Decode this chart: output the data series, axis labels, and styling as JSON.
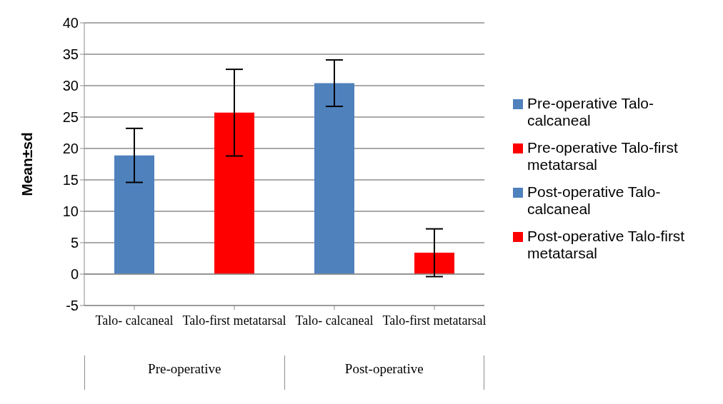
{
  "chart_data": {
    "type": "bar",
    "ylabel": "Mean±sd",
    "categories": [
      "Talo- calcaneal",
      "Talo-first metatarsal",
      "Talo- calcaneal",
      "Talo-first metatarsal"
    ],
    "series": [
      {
        "name": "Pre-operative Talo-calcaneal",
        "color": "#4f81bd",
        "values": [
          18.9,
          null,
          null,
          null
        ],
        "errors": [
          4.3,
          null,
          null,
          null
        ]
      },
      {
        "name": "Pre-operative Talo-first metatarsal",
        "color": "#ff0000",
        "values": [
          null,
          25.7,
          null,
          null
        ],
        "errors": [
          null,
          6.9,
          null,
          null
        ]
      },
      {
        "name": "Post-operative Talo-calcaneal",
        "color": "#4f81bd",
        "values": [
          null,
          null,
          30.4,
          null
        ],
        "errors": [
          null,
          null,
          3.7,
          null
        ]
      },
      {
        "name": "Post-operative Talo-first metatarsal",
        "color": "#ff0000",
        "values": [
          null,
          null,
          null,
          3.4
        ],
        "errors": [
          null,
          null,
          null,
          3.8
        ]
      }
    ],
    "stacked": true,
    "ylim": [
      -5,
      40
    ],
    "yticks": [
      -5,
      0,
      5,
      10,
      15,
      20,
      25,
      30,
      35,
      40
    ],
    "grid": "y",
    "legend": "right",
    "annotations": [
      "Pre-operative",
      "Post-operative"
    ]
  }
}
